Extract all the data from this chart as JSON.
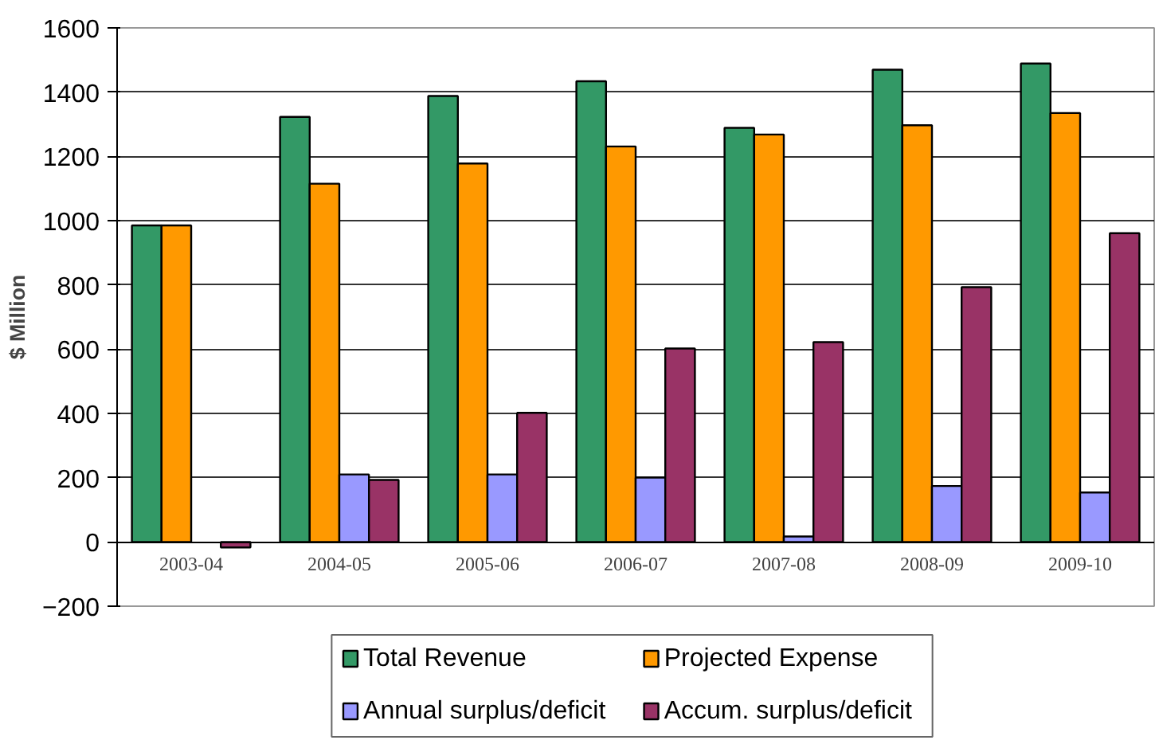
{
  "chart_data": {
    "type": "bar",
    "ylabel": "$ Million",
    "categories": [
      "2003-04",
      "2004-05",
      "2005-06",
      "2006-07",
      "2007-08",
      "2008-09",
      "2009-10"
    ],
    "series": [
      {
        "name": "Total Revenue",
        "color": "#339966",
        "values": [
          985,
          1323,
          1388,
          1434,
          1289,
          1470,
          1489
        ]
      },
      {
        "name": "Projected Expense",
        "color": "#ff9900",
        "values": [
          985,
          1115,
          1178,
          1231,
          1268,
          1297,
          1335
        ]
      },
      {
        "name": "Annual surplus/deficit",
        "color": "#9999ff",
        "values": [
          null,
          210,
          210,
          200,
          17,
          174,
          154
        ]
      },
      {
        "name": "Accum. surplus/deficit",
        "color": "#993366",
        "values": [
          -17,
          193,
          402,
          602,
          622,
          793,
          961
        ]
      }
    ],
    "ylim": [
      -200,
      1600
    ],
    "yticks": [
      -200,
      0,
      200,
      400,
      600,
      800,
      1000,
      1200,
      1400,
      1600
    ],
    "grid": "y",
    "legend": "bottom"
  }
}
